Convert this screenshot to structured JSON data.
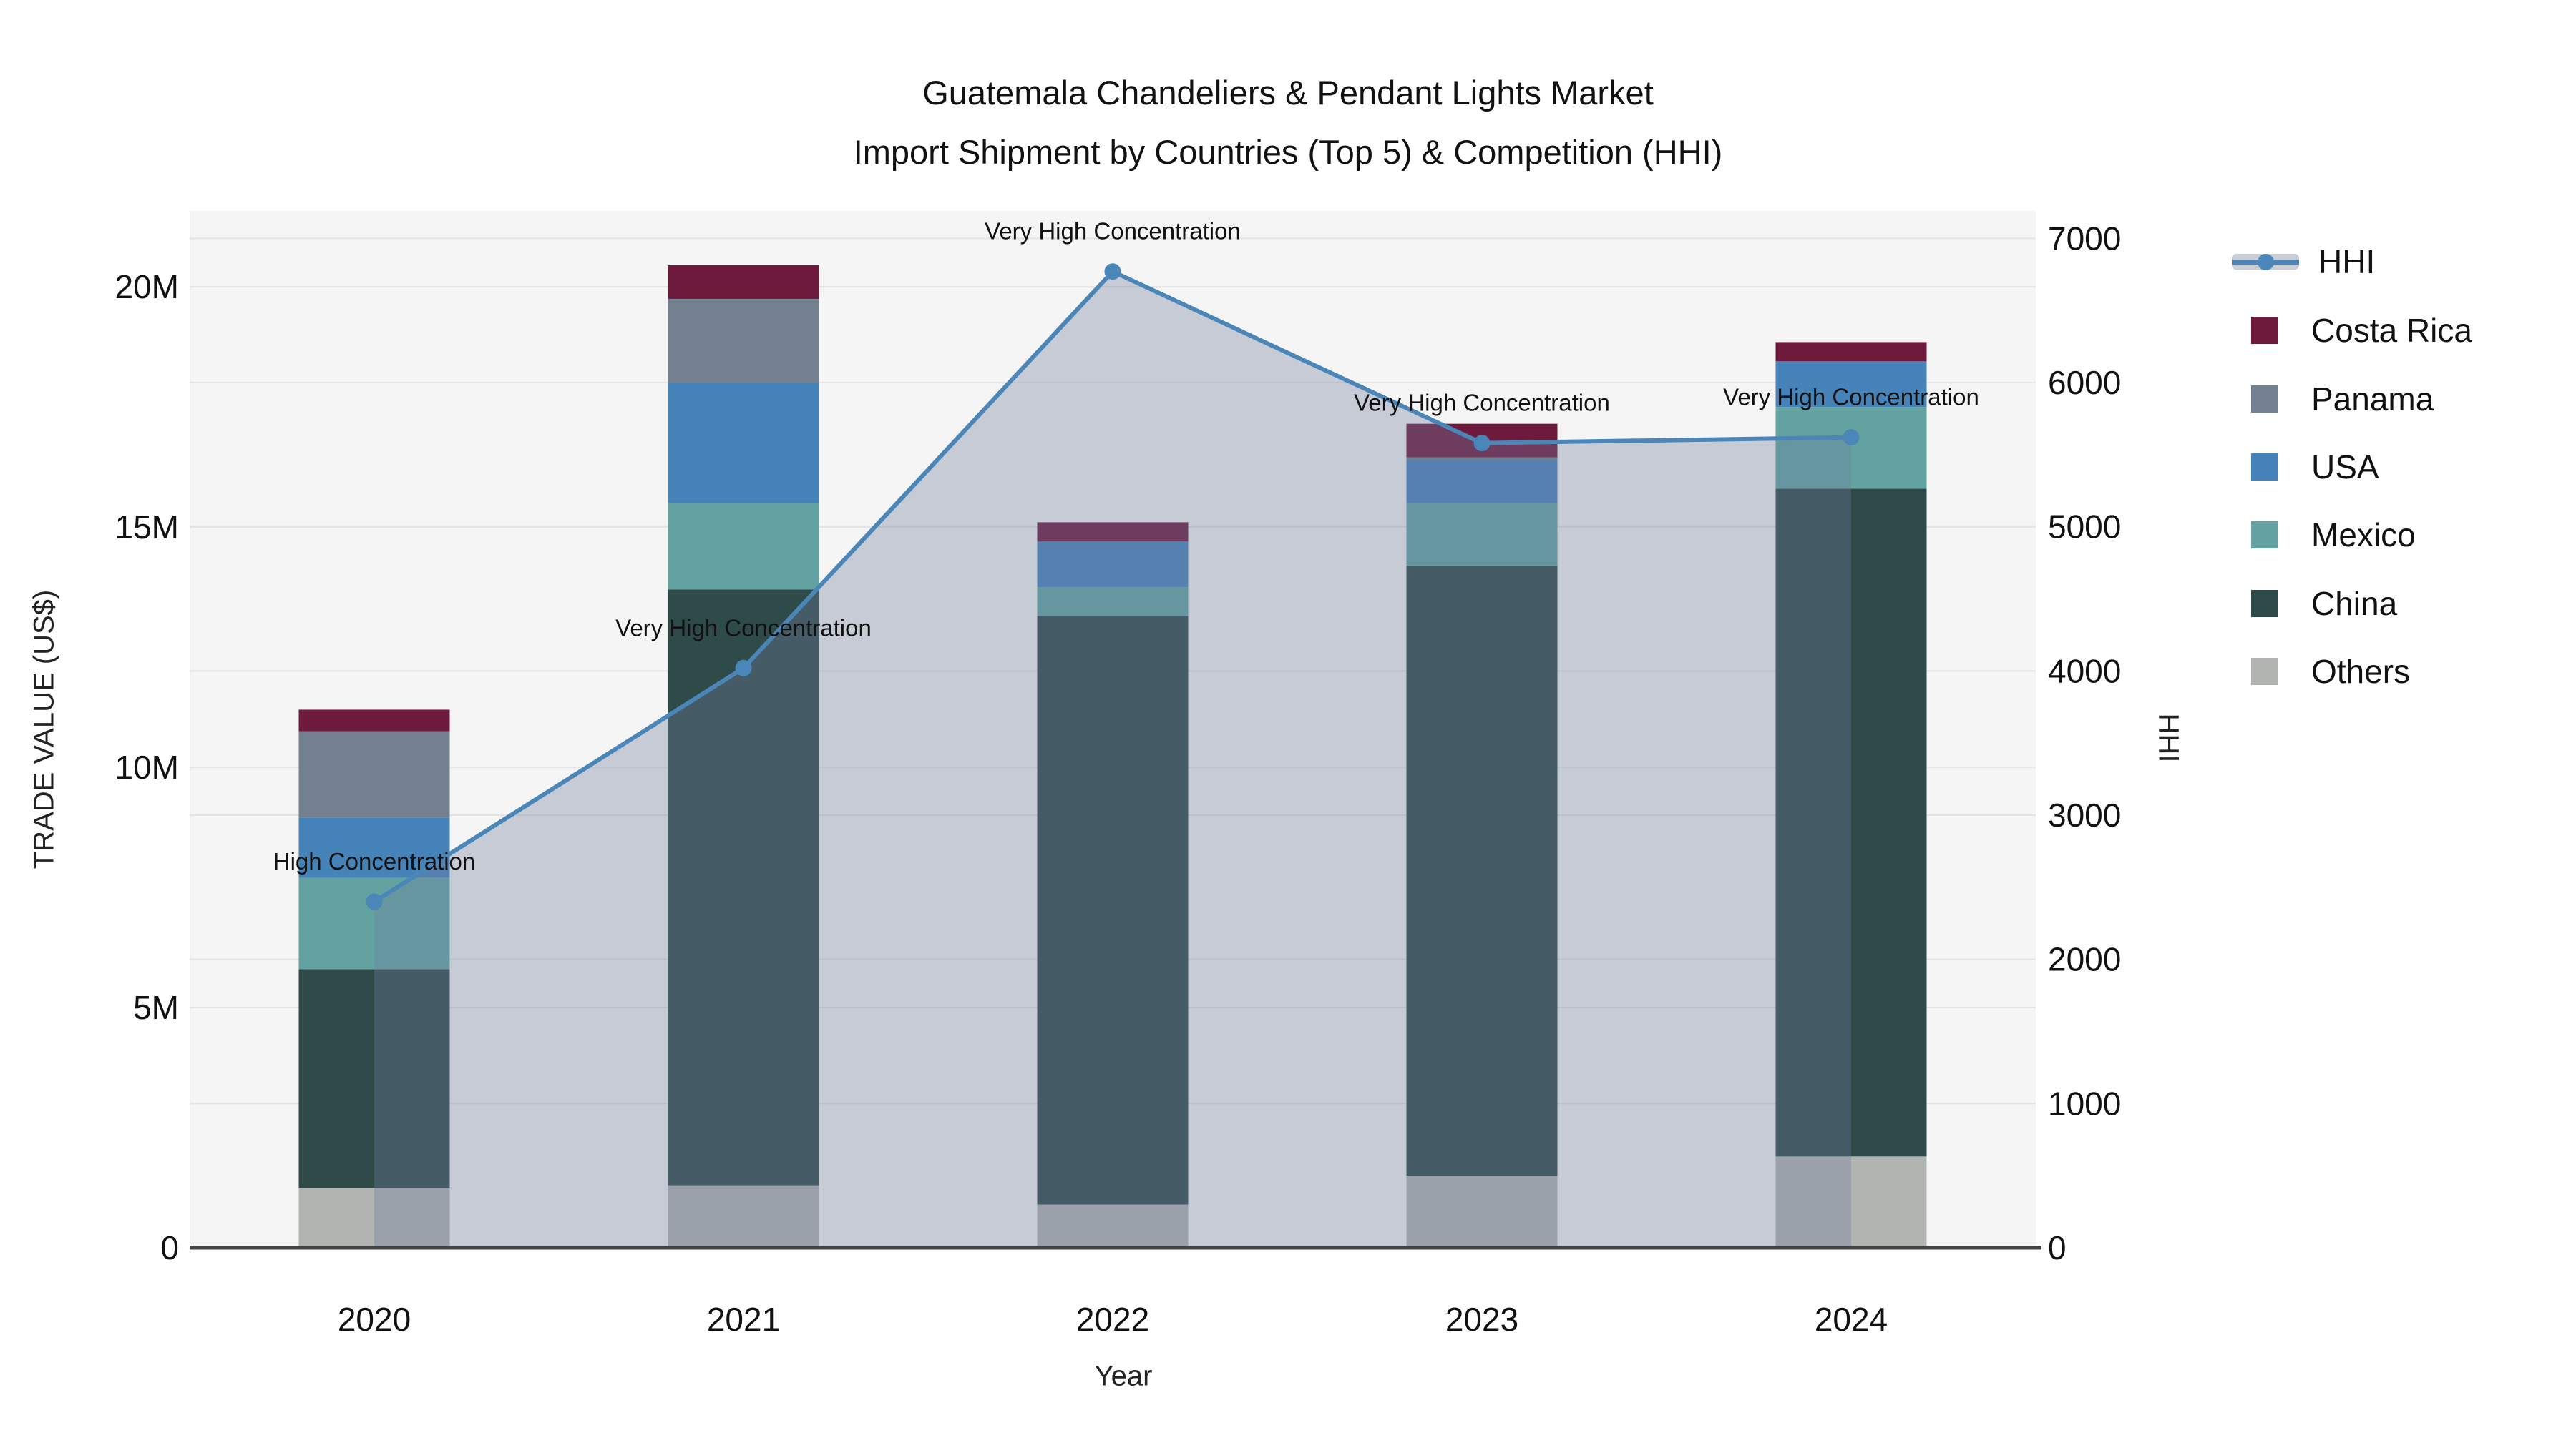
{
  "figure": {
    "title_line1": "Guatemala Chandeliers & Pendant Lights Market",
    "title_line2": "Import Shipment by Countries (Top 5) & Competition (HHI)",
    "xlabel": "Year",
    "ylabel_left": "TRADE VALUE (US$)",
    "ylabel_right": "HHI"
  },
  "chart_data": {
    "type": "bar",
    "subtype": "stacked-bars-with-hhi-line-and-area-overlay",
    "title": "Guatemala Chandeliers & Pendant Lights Market Import Shipment by Countries (Top 5) & Competition (HHI)",
    "xlabel": "Year",
    "ylabel_left": "TRADE VALUE (US$)",
    "ylabel_right": "HHI",
    "categories": [
      "2020",
      "2021",
      "2022",
      "2023",
      "2024"
    ],
    "stack_order_bottom_to_top": [
      "Others",
      "China",
      "Mexico",
      "USA",
      "Panama",
      "Costa Rica"
    ],
    "series": [
      {
        "name": "Others",
        "color": "#b2b4b2",
        "values_musd": [
          1.25,
          1.3,
          0.9,
          1.5,
          1.9
        ]
      },
      {
        "name": "China",
        "color": "#2e4b49",
        "values_musd": [
          4.55,
          12.4,
          12.25,
          12.7,
          13.9
        ]
      },
      {
        "name": "Mexico",
        "color": "#62a3a2",
        "values_musd": [
          1.9,
          1.8,
          0.6,
          1.3,
          1.7
        ]
      },
      {
        "name": "USA",
        "color": "#4683b8",
        "values_musd": [
          1.25,
          2.5,
          0.95,
          0.9,
          0.95
        ]
      },
      {
        "name": "Panama",
        "color": "#72808f",
        "values_musd": [
          1.8,
          1.75,
          0.0,
          0.05,
          0.0
        ]
      },
      {
        "name": "Costa Rica",
        "color": "#6e1a3c",
        "values_musd": [
          0.45,
          0.7,
          0.4,
          0.7,
          0.4
        ]
      }
    ],
    "bar_totals_musd": [
      11.2,
      20.45,
      15.1,
      17.15,
      18.85
    ],
    "line_series": {
      "name": "HHI",
      "color": "#4a86b8",
      "fill_color": "rgba(112,127,157,0.35)",
      "values": [
        2400,
        4020,
        6770,
        5580,
        5620
      ]
    },
    "annotations": [
      {
        "year": "2020",
        "text": "High Concentration"
      },
      {
        "year": "2021",
        "text": "Very High Concentration"
      },
      {
        "year": "2022",
        "text": "Very High Concentration"
      },
      {
        "year": "2023",
        "text": "Very High Concentration"
      },
      {
        "year": "2024",
        "text": "Very High Concentration"
      }
    ],
    "left_axis": {
      "ticks_musd": [
        0,
        5,
        10,
        15,
        20
      ],
      "tick_labels": [
        "0",
        "5M",
        "10M",
        "15M",
        "20M"
      ],
      "range_musd": [
        0,
        21.58
      ],
      "grid": true
    },
    "right_axis": {
      "ticks": [
        0,
        1000,
        2000,
        3000,
        4000,
        5000,
        6000,
        7000
      ],
      "tick_labels": [
        "0",
        "1000",
        "2000",
        "3000",
        "4000",
        "5000",
        "6000",
        "7000"
      ],
      "range": [
        0,
        7190
      ],
      "grid": true
    },
    "legend_position": "right",
    "legend": [
      {
        "label": "HHI",
        "type": "line",
        "color": "#4a86b8"
      },
      {
        "label": "Costa Rica",
        "type": "swatch",
        "color": "#6e1a3c"
      },
      {
        "label": "Panama",
        "type": "swatch",
        "color": "#72808f"
      },
      {
        "label": "USA",
        "type": "swatch",
        "color": "#4683b8"
      },
      {
        "label": "Mexico",
        "type": "swatch",
        "color": "#62a3a2"
      },
      {
        "label": "China",
        "type": "swatch",
        "color": "#2e4b49"
      },
      {
        "label": "Others",
        "type": "swatch",
        "color": "#b2b4b2"
      }
    ]
  },
  "style": {
    "plot_bg": "#f5f5f5",
    "grid_color": "#e4e4e4",
    "axis_line_color": "#444444",
    "text_color": "#111111"
  }
}
